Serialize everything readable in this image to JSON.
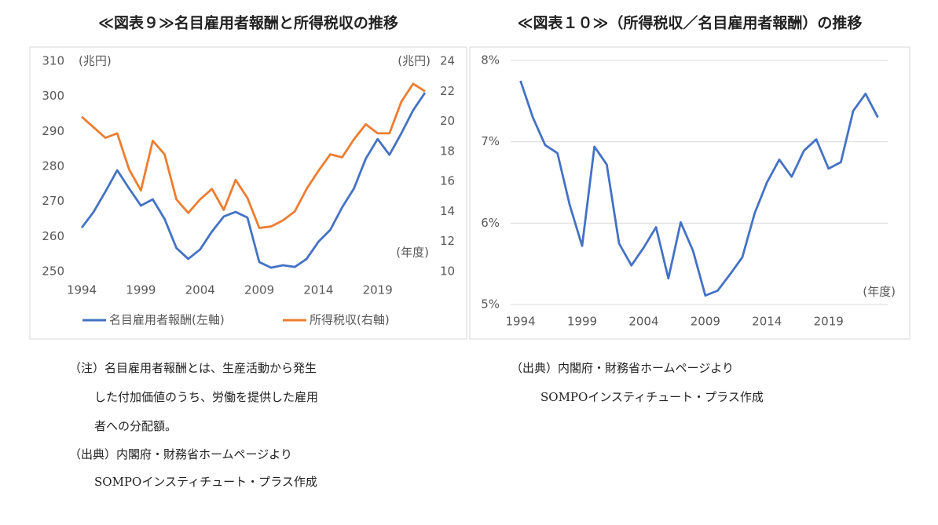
{
  "chart_data": [
    {
      "type": "line",
      "title": "≪図表９≫名目雇用者報酬と所得税収の推移",
      "ylabel": "(兆円)",
      "y2label": "(兆円)",
      "xlabel": "(年度)",
      "x": [
        1994,
        1995,
        1996,
        1997,
        1998,
        1999,
        2000,
        2001,
        2002,
        2003,
        2004,
        2005,
        2006,
        2007,
        2008,
        2009,
        2010,
        2011,
        2012,
        2013,
        2014,
        2015,
        2016,
        2017,
        2018,
        2019,
        2020,
        2021,
        2022,
        2023
      ],
      "xlim": [
        1993.2,
        2023.8
      ],
      "xticks": [
        1994,
        1999,
        2004,
        2009,
        2014,
        2019
      ],
      "ylim": [
        250,
        310
      ],
      "yticks": [
        250,
        260,
        270,
        280,
        290,
        300,
        310
      ],
      "y2lim": [
        10,
        24
      ],
      "y2ticks": [
        10,
        12,
        14,
        16,
        18,
        20,
        22,
        24
      ],
      "grid": false,
      "legend": "bottom",
      "series": [
        {
          "name": "名目雇用者報酬(左軸)",
          "color": "#4472c4",
          "values": [
            262.5,
            267,
            272.8,
            278.9,
            273.7,
            268.8,
            270.6,
            265,
            256.7,
            253.6,
            256.3,
            261.4,
            265.7,
            267,
            265.4,
            252.7,
            251.1,
            251.8,
            251.3,
            253.6,
            258.5,
            261.9,
            268.3,
            273.7,
            282.2,
            287.8,
            283.3,
            289.4,
            296,
            301
          ]
        },
        {
          "name": "所得税収(右軸)",
          "color": "#ed7d31",
          "axis": "y2",
          "values": [
            20.3,
            19.6,
            18.9,
            19.2,
            16.8,
            15.4,
            18.7,
            17.8,
            14.8,
            13.9,
            14.8,
            15.5,
            14.1,
            16.1,
            14.9,
            12.9,
            13.0,
            13.4,
            14.0,
            15.5,
            16.7,
            17.8,
            17.6,
            18.8,
            19.8,
            19.2,
            19.2,
            21.3,
            22.5,
            22.0
          ]
        }
      ]
    },
    {
      "type": "line",
      "title": "≪図表１０≫（所得税収／名目雇用者報酬）の推移",
      "xlabel": "(年度)",
      "x": [
        1994,
        1995,
        1996,
        1997,
        1998,
        1999,
        2000,
        2001,
        2002,
        2003,
        2004,
        2005,
        2006,
        2007,
        2008,
        2009,
        2010,
        2011,
        2012,
        2013,
        2014,
        2015,
        2016,
        2017,
        2018,
        2019,
        2020,
        2021,
        2022,
        2023
      ],
      "xlim": [
        1993.2,
        2023.8
      ],
      "xticks": [
        1994,
        1999,
        2004,
        2009,
        2014,
        2019
      ],
      "ylim": [
        5,
        8
      ],
      "yticks": [
        {
          "value": 5,
          "label": "5%"
        },
        {
          "value": 6,
          "label": "6%"
        },
        {
          "value": 7,
          "label": "7%"
        },
        {
          "value": 8,
          "label": "8%"
        }
      ],
      "grid": true,
      "series": [
        {
          "name": "所得税収／名目雇用者報酬",
          "color": "#4472c4",
          "values": [
            7.75,
            7.3,
            6.96,
            6.86,
            6.22,
            5.72,
            6.94,
            6.72,
            5.75,
            5.48,
            5.7,
            5.95,
            5.32,
            6.01,
            5.66,
            5.11,
            5.17,
            5.37,
            5.58,
            6.12,
            6.5,
            6.78,
            6.57,
            6.89,
            7.03,
            6.67,
            6.75,
            7.38,
            7.59,
            7.3
          ]
        }
      ]
    }
  ],
  "notes_left": [
    "（注）名目雇用者報酬とは、生産活動から発生",
    "した付加価値のうち、労働を提供した雇用",
    "者への分配額。",
    "（出典）内閣府・財務省ホームページより",
    "SOMPOインスティチュート・プラス作成"
  ],
  "notes_right": [
    "（出典）内閣府・財務省ホームページより",
    "SOMPOインスティチュート・プラス作成"
  ]
}
